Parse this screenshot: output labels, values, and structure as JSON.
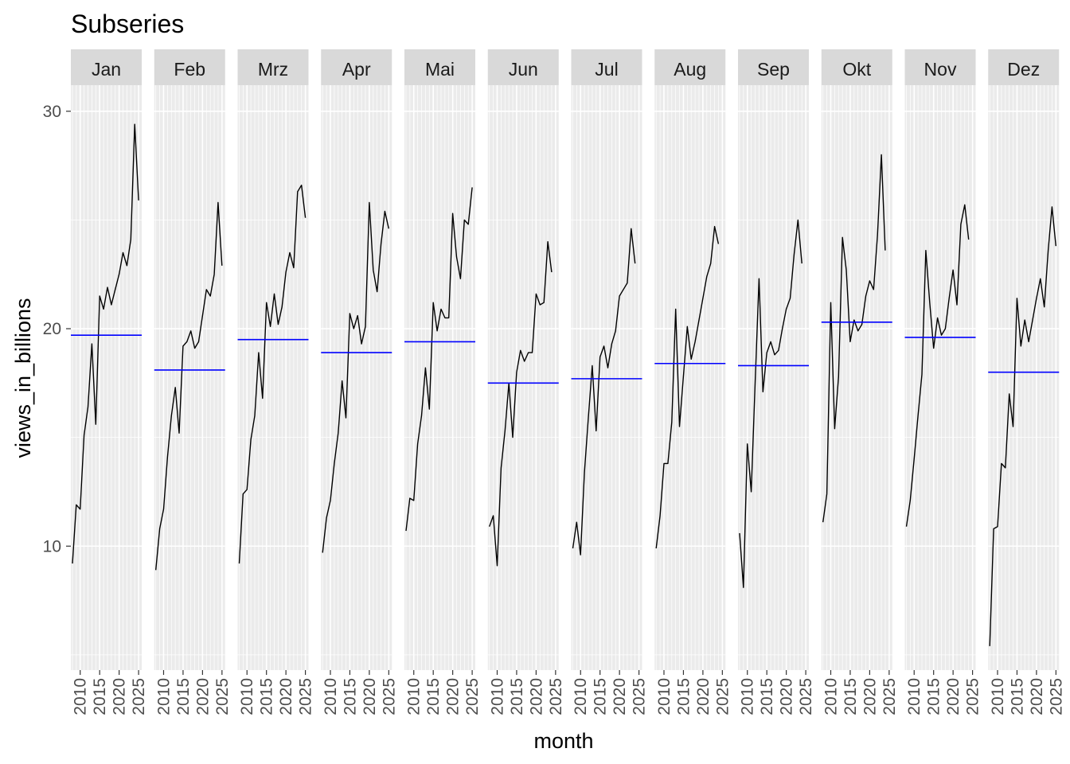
{
  "chart_data": {
    "type": "line",
    "title": "Subseries",
    "xlabel": "month",
    "ylabel": "views_in_billions",
    "ylim": [
      4.3,
      31.2
    ],
    "yticks": [
      "10",
      "20",
      "30"
    ],
    "xlim": [
      2007.6,
      2025.8
    ],
    "xticks": [
      "2010",
      "2015",
      "2020",
      "2025"
    ],
    "colors": {
      "series": "#000000",
      "mean": "#0000ff",
      "panel": "#ebebeb",
      "strip": "#d9d9d9",
      "grid": "#ffffff"
    },
    "x": [
      2008,
      2009,
      2010,
      2011,
      2012,
      2013,
      2014,
      2015,
      2016,
      2017,
      2018,
      2019,
      2020,
      2021,
      2022,
      2023,
      2024,
      2025
    ],
    "panels": [
      {
        "month": "Jan",
        "mean": 19.7,
        "values": [
          9.2,
          11.9,
          11.7,
          15.1,
          16.4,
          19.3,
          15.6,
          21.5,
          20.9,
          21.9,
          21.1,
          21.8,
          22.5,
          23.5,
          22.9,
          24.1,
          29.4,
          25.9
        ]
      },
      {
        "month": "Feb",
        "mean": 18.1,
        "values": [
          8.9,
          10.8,
          11.7,
          14.1,
          16.0,
          17.3,
          15.2,
          19.2,
          19.4,
          19.9,
          19.1,
          19.4,
          20.6,
          21.8,
          21.5,
          22.5,
          25.8,
          22.9
        ]
      },
      {
        "month": "Mrz",
        "mean": 19.5,
        "values": [
          9.2,
          12.4,
          12.6,
          14.9,
          16.0,
          18.9,
          16.8,
          21.2,
          20.1,
          21.6,
          20.2,
          21.0,
          22.6,
          23.5,
          22.8,
          26.3,
          26.6,
          25.1
        ]
      },
      {
        "month": "Apr",
        "mean": 18.9,
        "values": [
          9.7,
          11.3,
          12.1,
          13.8,
          15.2,
          17.6,
          15.9,
          20.7,
          20.0,
          20.6,
          19.3,
          20.1,
          25.8,
          22.7,
          21.7,
          23.9,
          25.4,
          24.6
        ]
      },
      {
        "month": "Mai",
        "mean": 19.4,
        "values": [
          10.7,
          12.2,
          12.1,
          14.7,
          16.0,
          18.2,
          16.3,
          21.2,
          19.9,
          20.9,
          20.5,
          20.5,
          25.3,
          23.3,
          22.3,
          25.0,
          24.8,
          26.5
        ]
      },
      {
        "month": "Jun",
        "mean": 17.5,
        "values": [
          10.9,
          11.4,
          9.1,
          13.6,
          15.3,
          17.5,
          15.0,
          18.0,
          19.0,
          18.5,
          18.9,
          18.9,
          21.6,
          21.1,
          21.2,
          24.0,
          22.6,
          null
        ]
      },
      {
        "month": "Jul",
        "mean": 17.7,
        "values": [
          9.9,
          11.1,
          9.6,
          13.4,
          15.9,
          18.3,
          15.3,
          18.7,
          19.2,
          18.2,
          19.3,
          19.9,
          21.5,
          21.8,
          22.1,
          24.6,
          23.0,
          null
        ]
      },
      {
        "month": "Aug",
        "mean": 18.4,
        "values": [
          9.9,
          11.4,
          13.8,
          13.8,
          15.7,
          20.9,
          15.5,
          17.8,
          20.1,
          18.6,
          19.4,
          20.4,
          21.4,
          22.4,
          23.0,
          24.7,
          23.9,
          null
        ]
      },
      {
        "month": "Sep",
        "mean": 18.3,
        "values": [
          10.6,
          8.1,
          14.7,
          12.5,
          17.5,
          22.3,
          17.1,
          18.9,
          19.4,
          18.8,
          19.0,
          20.0,
          20.9,
          21.4,
          23.4,
          25.0,
          23.0,
          null
        ]
      },
      {
        "month": "Okt",
        "mean": 20.3,
        "values": [
          11.1,
          12.4,
          21.2,
          15.4,
          17.8,
          24.2,
          22.7,
          19.4,
          20.4,
          19.9,
          20.2,
          21.5,
          22.2,
          21.8,
          24.3,
          28.0,
          23.6,
          null
        ]
      },
      {
        "month": "Nov",
        "mean": 19.6,
        "values": [
          10.9,
          12.1,
          14.0,
          16.0,
          17.9,
          23.6,
          21.2,
          19.1,
          20.5,
          19.7,
          20.0,
          21.4,
          22.7,
          21.1,
          24.8,
          25.7,
          24.1,
          null
        ]
      },
      {
        "month": "Dez",
        "mean": 18.0,
        "values": [
          5.4,
          10.8,
          10.9,
          13.8,
          13.6,
          17.0,
          15.5,
          21.4,
          19.2,
          20.4,
          19.4,
          20.4,
          21.4,
          22.3,
          21.0,
          23.6,
          25.6,
          23.8
        ]
      }
    ]
  }
}
